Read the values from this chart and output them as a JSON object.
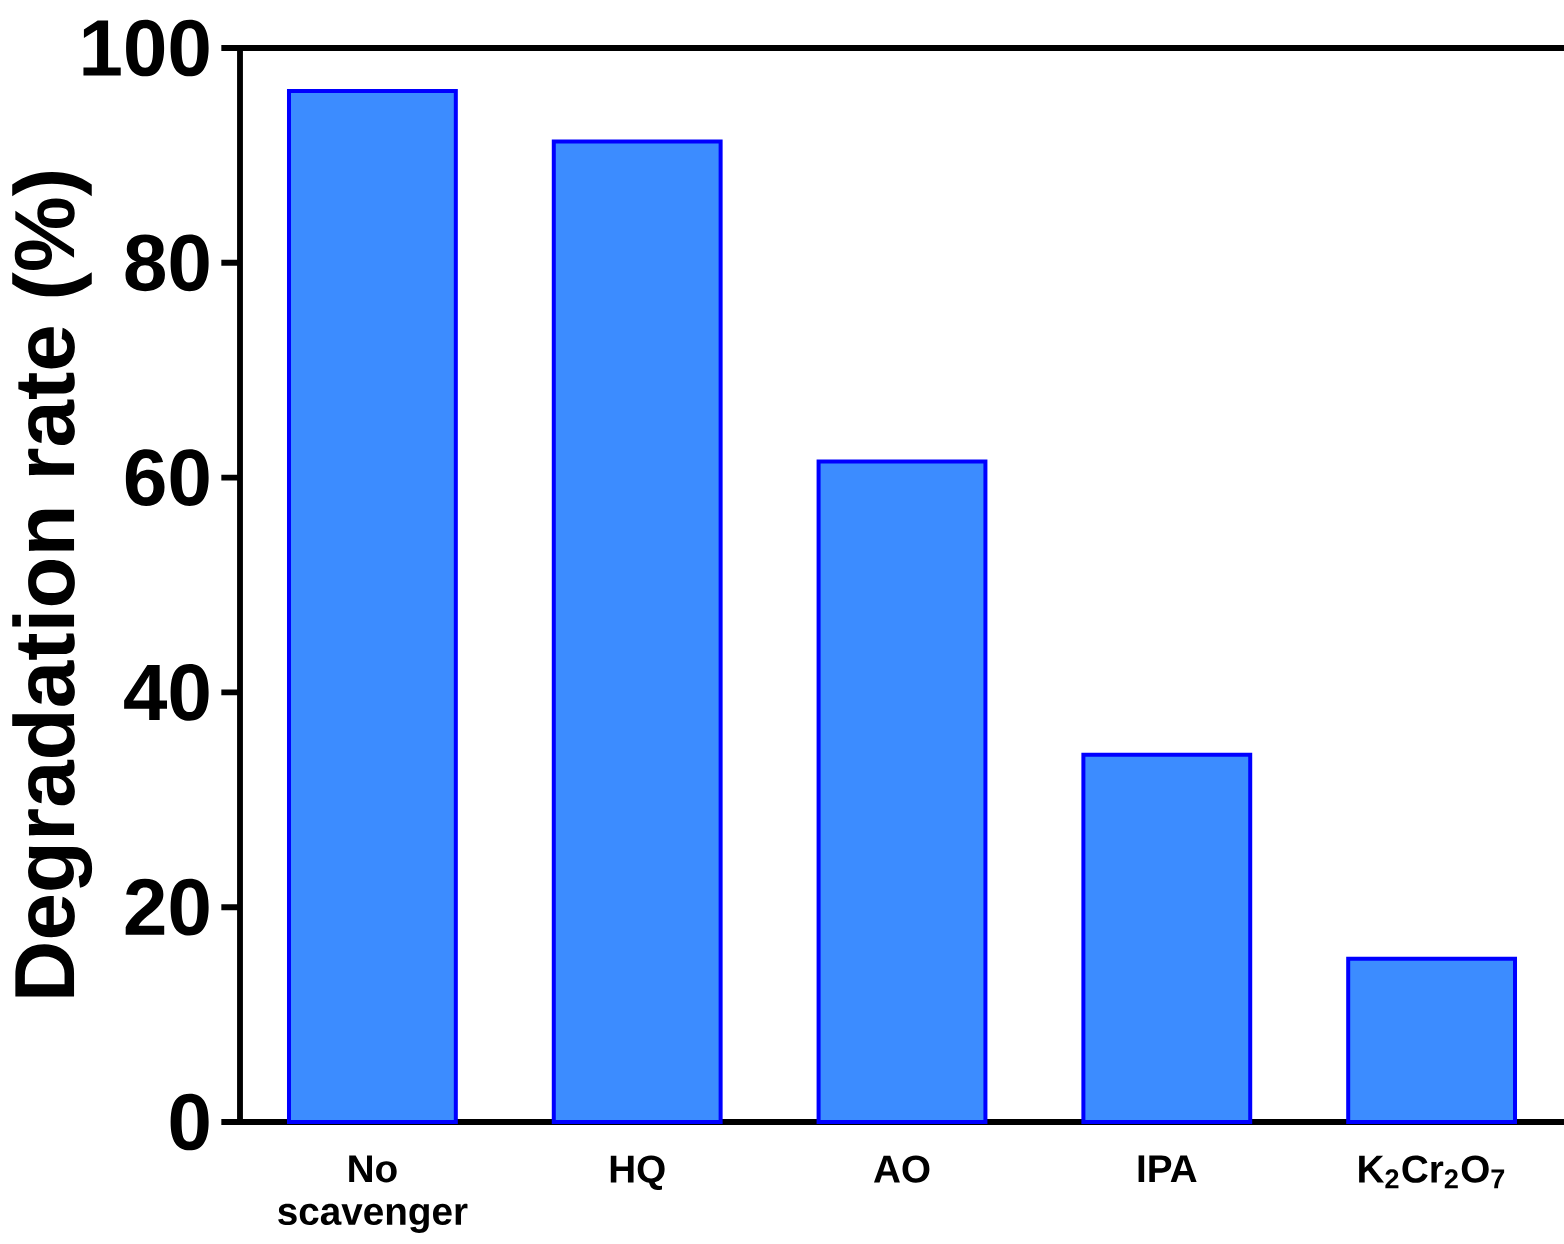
{
  "chart_data": {
    "type": "bar",
    "ylabel": "Degradation rate (%)",
    "categories": [
      "No\nscavenger",
      "HQ",
      "AO",
      "IPA",
      "K$_{2}$Cr$_{2}$O$_{7}$"
    ],
    "values": [
      96.0,
      91.3,
      61.5,
      34.2,
      15.2
    ],
    "color": "#3c8cff",
    "ylim": [
      0,
      100
    ],
    "yticks": [
      0,
      20,
      40,
      60,
      80,
      100
    ],
    "grid": false
  }
}
